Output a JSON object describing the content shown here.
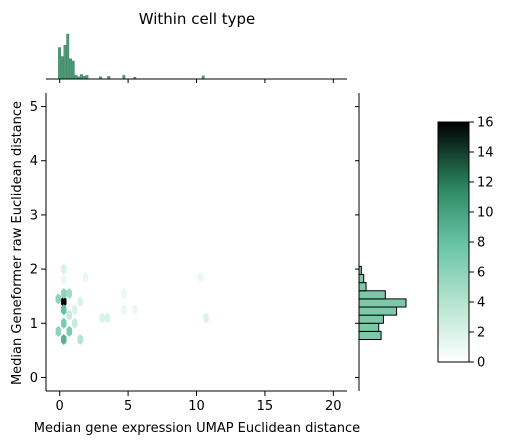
{
  "chart_data": {
    "type": "hexbin-joint",
    "title": "Within cell type",
    "xlabel": "Median gene expression UMAP Euclidean distance",
    "ylabel": "Median Geneformer raw Euclidean distance",
    "xlim": [
      -1,
      21
    ],
    "ylim": [
      -0.25,
      5.25
    ],
    "xticks": [
      0,
      5,
      10,
      15,
      20
    ],
    "yticks": [
      0,
      1,
      2,
      3,
      4,
      5
    ],
    "colorbar": {
      "min": 0,
      "max": 16,
      "ticks": [
        0,
        2,
        4,
        6,
        8,
        10,
        12,
        14,
        16
      ]
    },
    "hexbins": [
      {
        "x": 0.3,
        "y": 1.4,
        "count": 16
      },
      {
        "x": 0.3,
        "y": 1.25,
        "count": 8
      },
      {
        "x": 0.3,
        "y": 1.55,
        "count": 6
      },
      {
        "x": -0.1,
        "y": 1.45,
        "count": 6
      },
      {
        "x": 0.7,
        "y": 1.55,
        "count": 5
      },
      {
        "x": 0.3,
        "y": 1.0,
        "count": 7
      },
      {
        "x": 0.7,
        "y": 0.85,
        "count": 7
      },
      {
        "x": -0.1,
        "y": 0.85,
        "count": 6
      },
      {
        "x": 0.3,
        "y": 0.7,
        "count": 9
      },
      {
        "x": 0.7,
        "y": 1.15,
        "count": 3
      },
      {
        "x": 1.1,
        "y": 1.0,
        "count": 3
      },
      {
        "x": 1.5,
        "y": 1.4,
        "count": 2
      },
      {
        "x": 1.1,
        "y": 1.25,
        "count": 2
      },
      {
        "x": 1.5,
        "y": 0.7,
        "count": 4
      },
      {
        "x": 0.3,
        "y": 2.0,
        "count": 2
      },
      {
        "x": 0.3,
        "y": 1.8,
        "count": 1
      },
      {
        "x": 1.9,
        "y": 1.85,
        "count": 1
      },
      {
        "x": 3.1,
        "y": 1.1,
        "count": 2
      },
      {
        "x": 3.5,
        "y": 1.1,
        "count": 2
      },
      {
        "x": 4.7,
        "y": 1.25,
        "count": 1
      },
      {
        "x": 4.7,
        "y": 1.55,
        "count": 1
      },
      {
        "x": 5.5,
        "y": 1.25,
        "count": 1
      },
      {
        "x": 10.3,
        "y": 1.85,
        "count": 1
      },
      {
        "x": 10.7,
        "y": 1.1,
        "count": 2
      }
    ],
    "x_marginal_bins": [
      {
        "x": 0.0,
        "count": 0.7
      },
      {
        "x": 0.2,
        "count": 0.5
      },
      {
        "x": 0.4,
        "count": 0.75
      },
      {
        "x": 0.6,
        "count": 1.0
      },
      {
        "x": 0.8,
        "count": 0.45
      },
      {
        "x": 1.0,
        "count": 0.4
      },
      {
        "x": 1.2,
        "count": 0.08
      },
      {
        "x": 1.4,
        "count": 0.05
      },
      {
        "x": 1.6,
        "count": 0.1
      },
      {
        "x": 1.8,
        "count": 0.06
      },
      {
        "x": 2.0,
        "count": 0.08
      },
      {
        "x": 3.0,
        "count": 0.05
      },
      {
        "x": 3.6,
        "count": 0.06
      },
      {
        "x": 4.7,
        "count": 0.08
      },
      {
        "x": 5.5,
        "count": 0.04
      },
      {
        "x": 10.5,
        "count": 0.07
      }
    ],
    "y_marginal_bins": [
      {
        "y0": 0.7,
        "y1": 0.85,
        "count": 0.47
      },
      {
        "y0": 0.85,
        "y1": 1.0,
        "count": 0.42
      },
      {
        "y0": 1.0,
        "y1": 1.15,
        "count": 0.52
      },
      {
        "y0": 1.15,
        "y1": 1.3,
        "count": 0.8
      },
      {
        "y0": 1.3,
        "y1": 1.45,
        "count": 1.0
      },
      {
        "y0": 1.45,
        "y1": 1.6,
        "count": 0.56
      },
      {
        "y0": 1.6,
        "y1": 1.75,
        "count": 0.15
      },
      {
        "y0": 1.75,
        "y1": 1.9,
        "count": 0.1
      },
      {
        "y0": 1.9,
        "y1": 2.05,
        "count": 0.05
      }
    ]
  }
}
